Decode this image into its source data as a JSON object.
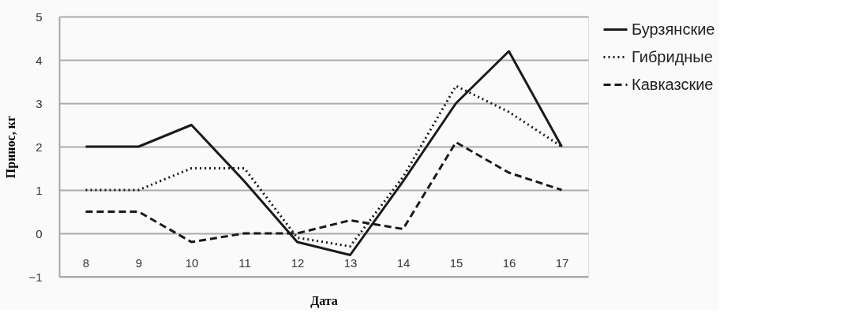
{
  "chart_data": {
    "type": "line",
    "xlabel": "Дата",
    "ylabel": "Принос, кг",
    "categories": [
      "8",
      "9",
      "10",
      "11",
      "12",
      "13",
      "14",
      "15",
      "16",
      "17"
    ],
    "series": [
      {
        "name": "Бурзянские",
        "color": "#1a1a1a",
        "line_style": "solid",
        "values": [
          2,
          2,
          2.5,
          1.2,
          -0.2,
          -0.5,
          1.2,
          3.0,
          4.2,
          2.0
        ]
      },
      {
        "name": "Гибридные",
        "color": "#1a1a1a",
        "line_style": "dotted",
        "values": [
          1,
          1,
          1.5,
          1.5,
          -0.1,
          -0.3,
          1.3,
          3.4,
          2.8,
          2.0
        ]
      },
      {
        "name": "Кавказские",
        "color": "#1a1a1a",
        "line_style": "dashed",
        "values": [
          0.5,
          0.5,
          -0.2,
          0,
          0,
          0.3,
          0.1,
          2.1,
          1.4,
          1.0
        ]
      }
    ],
    "ylim": [
      -1,
      5
    ],
    "yticks": [
      -1,
      0,
      1,
      2,
      3,
      4,
      5
    ],
    "grid": "y",
    "legend": "right",
    "marker": "none"
  }
}
